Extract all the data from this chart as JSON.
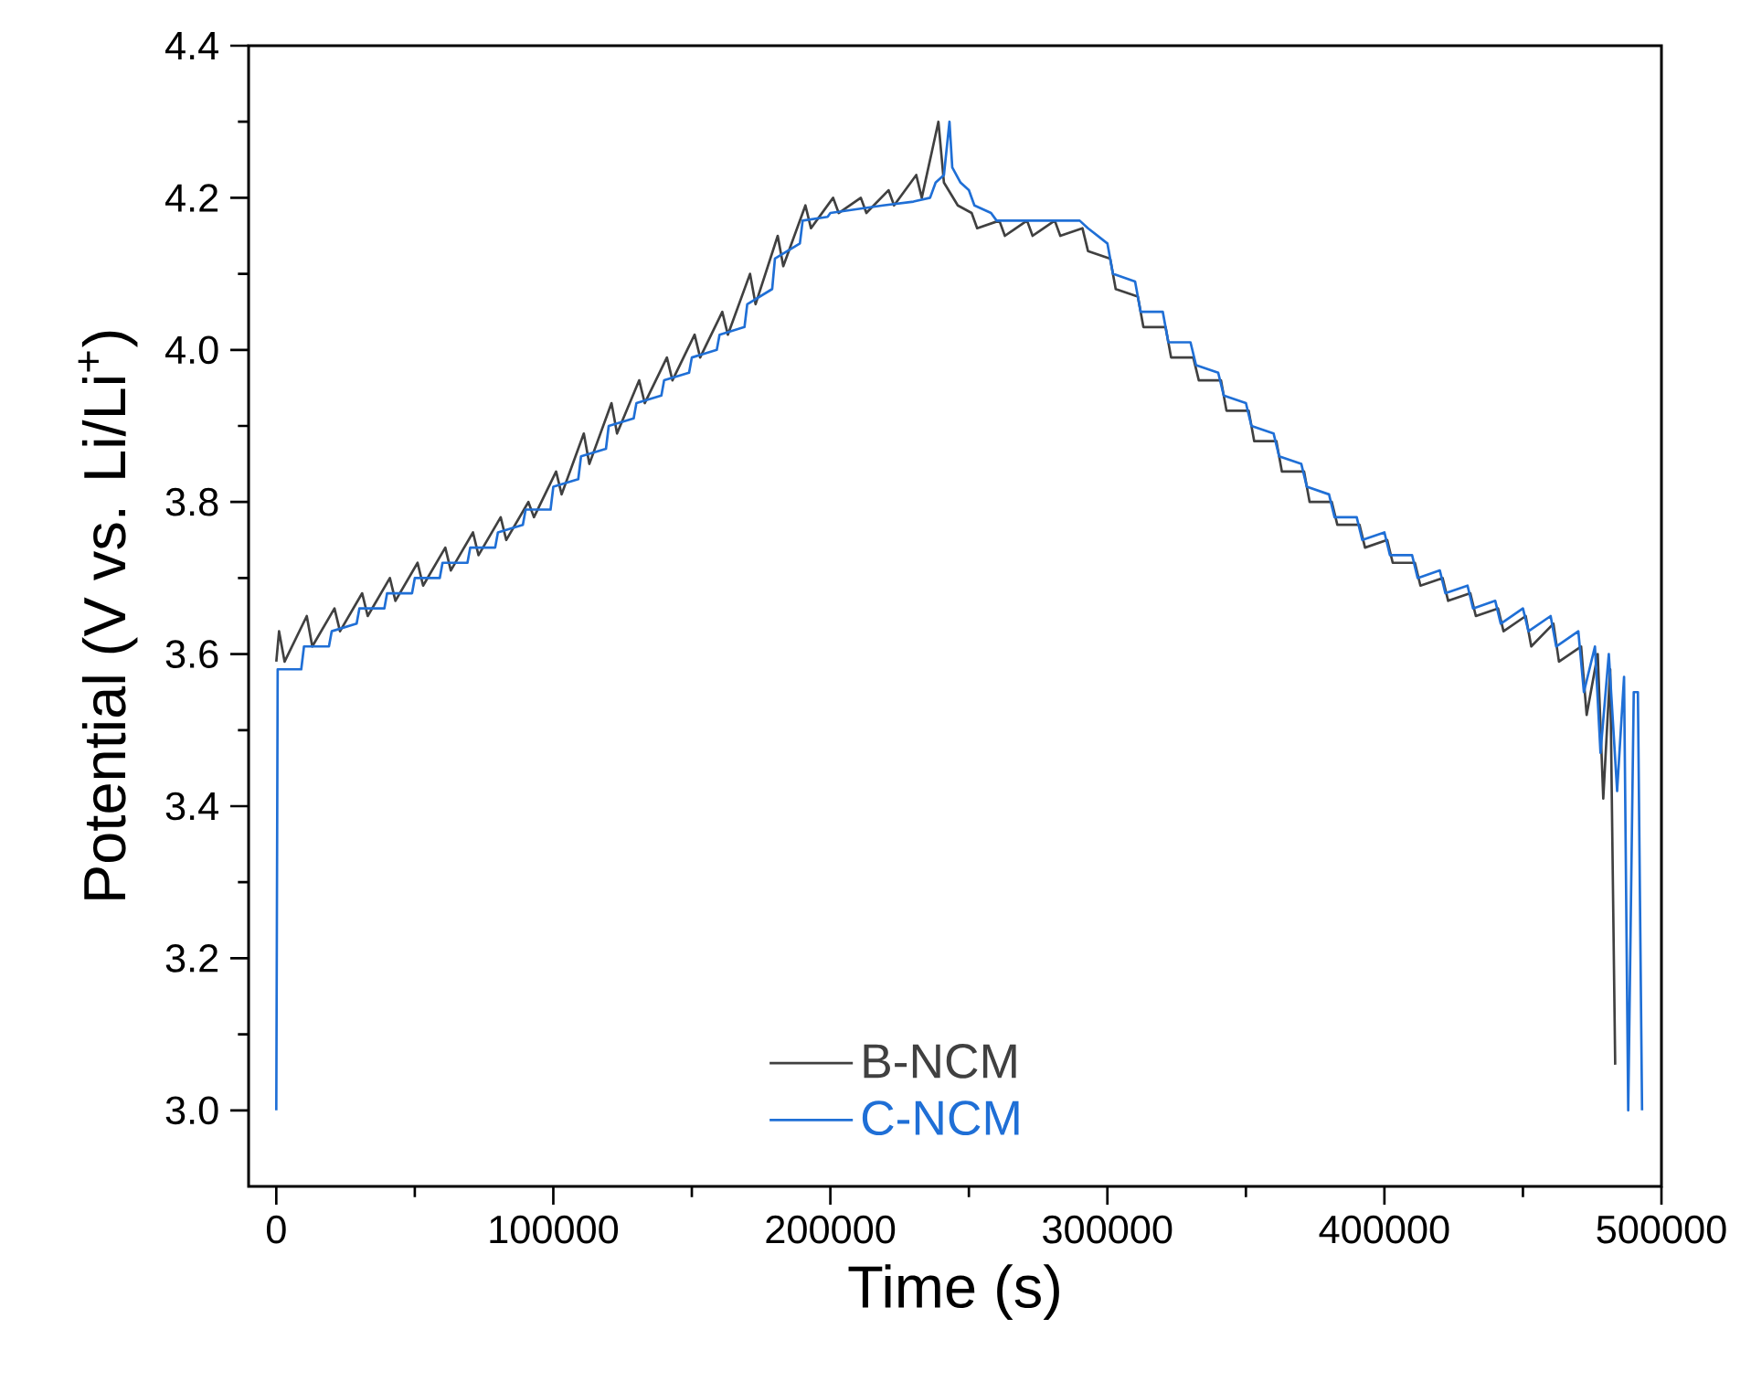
{
  "chart_data": {
    "type": "line",
    "xlabel": "Time (s)",
    "ylabel": "Potential (V vs. Li/Li$^{+}$)",
    "xlim": [
      -10000,
      500000
    ],
    "ylim": [
      2.9,
      4.4
    ],
    "xticks": [
      0,
      100000,
      200000,
      300000,
      400000,
      500000
    ],
    "yticks": [
      {
        "value": 3.0,
        "label": "3.0"
      },
      {
        "value": 3.2,
        "label": "3.2"
      },
      {
        "value": 3.4,
        "label": "3.4"
      },
      {
        "value": 3.6,
        "label": "3.6"
      },
      {
        "value": 3.8,
        "label": "3.8"
      },
      {
        "value": 4.0,
        "label": "4.0"
      },
      {
        "value": 4.2,
        "label": "4.2"
      },
      {
        "value": 4.4,
        "label": "4.4"
      }
    ],
    "legend": "bottom",
    "series": [
      {
        "name": "B-NCM",
        "color": "#404040",
        "x": [
          0,
          1000,
          3000,
          11000,
          13000,
          21000,
          23000,
          31000,
          33000,
          41000,
          43000,
          51000,
          53000,
          61000,
          63000,
          71000,
          73000,
          81000,
          83000,
          91000,
          93000,
          101000,
          103000,
          111000,
          113000,
          121000,
          123000,
          131000,
          133000,
          141000,
          143000,
          151000,
          153000,
          161000,
          163000,
          171000,
          173000,
          181000,
          183000,
          191000,
          193000,
          201000,
          203000,
          211000,
          213000,
          221000,
          223000,
          231000,
          233000,
          239000,
          241000,
          246000,
          251000,
          253000,
          261000,
          263000,
          271000,
          273000,
          281000,
          283000,
          291000,
          293000,
          301000,
          303000,
          311000,
          313000,
          321000,
          323000,
          331000,
          333000,
          341000,
          343000,
          351000,
          353000,
          361000,
          363000,
          371000,
          373000,
          381000,
          383000,
          391000,
          393000,
          401000,
          403000,
          411000,
          413000,
          421000,
          423000,
          431000,
          433000,
          441000,
          443000,
          451000,
          453000,
          461000,
          463000,
          471000,
          473000,
          477000,
          479000,
          481500,
          483300
        ],
        "values": [
          3.59,
          3.63,
          3.59,
          3.65,
          3.61,
          3.66,
          3.63,
          3.68,
          3.65,
          3.7,
          3.67,
          3.72,
          3.69,
          3.74,
          3.71,
          3.76,
          3.73,
          3.78,
          3.75,
          3.8,
          3.78,
          3.84,
          3.81,
          3.89,
          3.85,
          3.93,
          3.89,
          3.96,
          3.93,
          3.99,
          3.96,
          4.02,
          3.99,
          4.05,
          4.02,
          4.1,
          4.06,
          4.15,
          4.11,
          4.19,
          4.16,
          4.2,
          4.18,
          4.2,
          4.18,
          4.21,
          4.19,
          4.23,
          4.2,
          4.3,
          4.22,
          4.19,
          4.18,
          4.16,
          4.17,
          4.15,
          4.17,
          4.15,
          4.17,
          4.15,
          4.16,
          4.13,
          4.12,
          4.08,
          4.07,
          4.03,
          4.03,
          3.99,
          3.99,
          3.96,
          3.96,
          3.92,
          3.92,
          3.88,
          3.88,
          3.84,
          3.84,
          3.8,
          3.8,
          3.77,
          3.77,
          3.74,
          3.75,
          3.72,
          3.72,
          3.69,
          3.7,
          3.67,
          3.68,
          3.65,
          3.66,
          3.63,
          3.65,
          3.61,
          3.64,
          3.59,
          3.61,
          3.52,
          3.6,
          3.41,
          3.58,
          3.06
        ]
      },
      {
        "name": "C-NCM",
        "color": "#1f6fd6",
        "x": [
          0,
          500,
          9000,
          10000,
          19000,
          20000,
          29000,
          30000,
          39000,
          40000,
          49000,
          50000,
          59000,
          60000,
          69000,
          70000,
          79000,
          80000,
          89000,
          90000,
          99000,
          100000,
          109000,
          110000,
          119000,
          120000,
          129000,
          130000,
          139000,
          140000,
          149000,
          150000,
          159000,
          160000,
          169000,
          170000,
          179000,
          180000,
          189000,
          190000,
          199000,
          200000,
          219000,
          230000,
          236000,
          238000,
          241000,
          243000,
          244000,
          247000,
          250000,
          252000,
          258000,
          260000,
          290000,
          293000,
          300000,
          302000,
          310000,
          312000,
          320000,
          322000,
          330000,
          332000,
          340000,
          342000,
          350000,
          352000,
          360000,
          362000,
          370000,
          372000,
          380000,
          382000,
          390000,
          392000,
          400000,
          402000,
          410000,
          412000,
          420000,
          422000,
          430000,
          432000,
          440000,
          442000,
          450000,
          452000,
          460000,
          462000,
          470000,
          472000,
          476000,
          478000,
          481000,
          484000,
          486500,
          488000,
          490000,
          491500,
          493000
        ],
        "values": [
          3.0,
          3.58,
          3.58,
          3.61,
          3.61,
          3.63,
          3.64,
          3.66,
          3.66,
          3.68,
          3.68,
          3.7,
          3.7,
          3.72,
          3.72,
          3.74,
          3.74,
          3.76,
          3.77,
          3.79,
          3.79,
          3.82,
          3.83,
          3.86,
          3.87,
          3.9,
          3.91,
          3.93,
          3.94,
          3.96,
          3.97,
          3.99,
          4.0,
          4.02,
          4.03,
          4.06,
          4.08,
          4.12,
          4.14,
          4.17,
          4.175,
          4.18,
          4.19,
          4.195,
          4.2,
          4.22,
          4.23,
          4.3,
          4.24,
          4.22,
          4.21,
          4.19,
          4.18,
          4.17,
          4.17,
          4.16,
          4.14,
          4.1,
          4.09,
          4.05,
          4.05,
          4.01,
          4.01,
          3.98,
          3.97,
          3.94,
          3.93,
          3.9,
          3.89,
          3.86,
          3.85,
          3.82,
          3.81,
          3.78,
          3.78,
          3.75,
          3.76,
          3.73,
          3.73,
          3.7,
          3.71,
          3.68,
          3.69,
          3.66,
          3.67,
          3.64,
          3.66,
          3.63,
          3.65,
          3.61,
          3.63,
          3.55,
          3.61,
          3.47,
          3.6,
          3.42,
          3.57,
          3.0,
          3.55,
          3.55,
          3.0
        ]
      }
    ]
  }
}
